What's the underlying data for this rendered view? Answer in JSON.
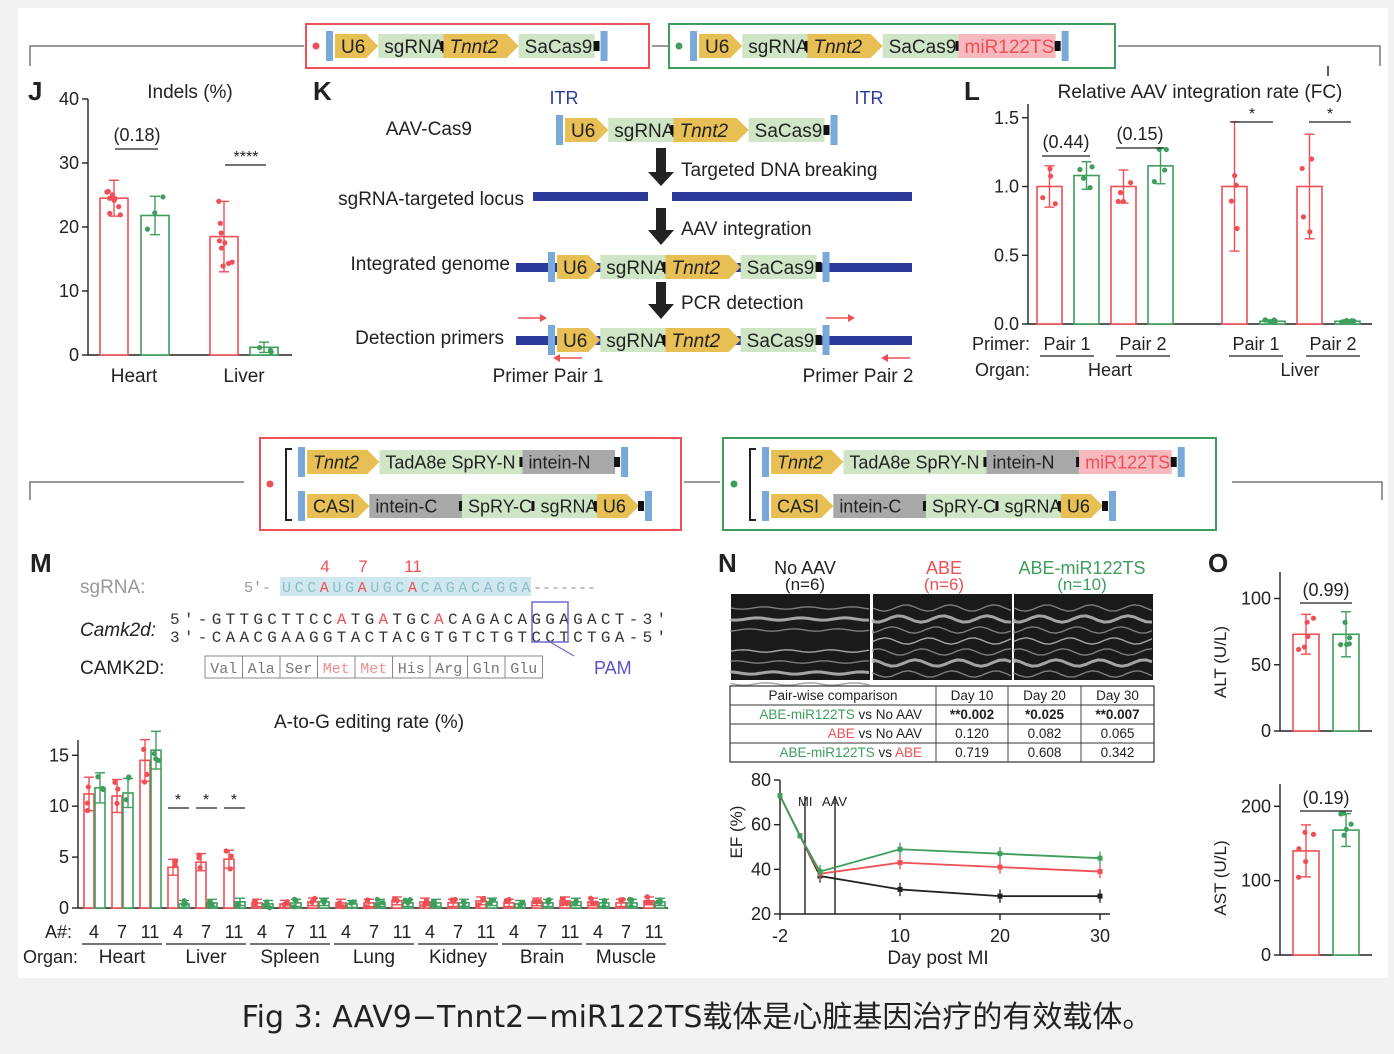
{
  "caption": "Fig 3: AAV9−Tnnt2−miR122TS载体是心脏基因治疗的有效载体。",
  "colors": {
    "red": "#ef4f55",
    "green": "#3f9e5d",
    "black": "#222222",
    "blue": "#2b3a9b",
    "gene_green": "#cfe6c6",
    "arrow_gold": "#e7bf55",
    "itr_blue": "#78a9d9",
    "mir_pink": "#f7b9bd",
    "intein_gray": "#a8a8a8"
  },
  "constructs": {
    "top_left": [
      "U6",
      "sgRNA",
      "Tnnt2",
      "SaCas9"
    ],
    "top_right": [
      "U6",
      "sgRNA",
      "Tnnt2",
      "SaCas9",
      "miR122TS"
    ],
    "bottom_left_row1": [
      "Tnnt2",
      "TadA8e SpRY-N",
      "intein-N"
    ],
    "bottom_left_row2": [
      "CASI",
      "intein-C",
      "SpRY-C",
      "sgRNA",
      "U6"
    ],
    "bottom_right_row1": [
      "Tnnt2",
      "TadA8e SpRY-N",
      "intein-N",
      "miR122TS"
    ],
    "bottom_right_row2": [
      "CASI",
      "intein-C",
      "SpRY-C",
      "sgRNA",
      "U6"
    ]
  },
  "panelJ": {
    "letter": "J",
    "title": "Indels (%)",
    "yticks": [
      "0",
      "10",
      "20",
      "30",
      "40"
    ],
    "categories": [
      "Heart",
      "Liver"
    ],
    "p_heart": "(0.18)",
    "p_liver": "****"
  },
  "panelK": {
    "letter": "K",
    "itr_left": "ITR",
    "itr_right": "ITR",
    "row1": "AAV-Cas9",
    "row2": "sgRNA-targeted locus",
    "row3": "Integrated genome",
    "row4": "Detection primers",
    "step1": "Targeted DNA breaking",
    "step2": "AAV integration",
    "step3": "PCR detection",
    "pair1": "Primer Pair 1",
    "pair2": "Primer Pair 2"
  },
  "panelL": {
    "letter": "L",
    "title": "Relative AAV integration rate (FC)",
    "yticks": [
      "0.0",
      "0.5",
      "1.0",
      "1.5"
    ],
    "primer_label": "Primer:",
    "organ_label": "Organ:",
    "pairs": [
      "Pair 1",
      "Pair 2",
      "Pair 1",
      "Pair 2"
    ],
    "organs": [
      "Heart",
      "Liver"
    ],
    "p1": "(0.44)",
    "p2": "(0.15)",
    "star": "*"
  },
  "panelM": {
    "letter": "M",
    "positions": [
      "4",
      "7",
      "11"
    ],
    "sgrna_label": "sgRNA:",
    "sgrna_prefix": "5'-",
    "sgrna_seq": "UCCAUGAUGCACAGACAGGA",
    "sgrna_dashes": "-------",
    "camk2d_label": "Camk2d:",
    "top_strand": "5'-GTTGCTTCCATGATGCACAGACAGGAGACT-3'",
    "bottom_strand": "3'-CAACGAAGGTACTACGTGTCTGTCCTCTGA-5'",
    "protein_label": "CAMK2D:",
    "aa": [
      "Val",
      "Ala",
      "Ser",
      "Met",
      "Met",
      "His",
      "Arg",
      "Gln",
      "Glu"
    ],
    "pam": "PAM",
    "chart_title": "A-to-G editing rate (%)",
    "yticks": [
      "0",
      "5",
      "10",
      "15"
    ],
    "a_label": "A#:",
    "organ_label": "Organ:",
    "organs": [
      "Heart",
      "Liver",
      "Spleen",
      "Lung",
      "Kidney",
      "Brain",
      "Muscle"
    ],
    "star": "*"
  },
  "panelN": {
    "letter": "N",
    "groups": [
      {
        "name": "No AAV",
        "n": "(n=6)"
      },
      {
        "name": "ABE",
        "n": "(n=6)"
      },
      {
        "name": "ABE-miR122TS",
        "n": "(n=10)"
      }
    ],
    "table_header": [
      "Pair-wise comparison",
      "Day 10",
      "Day 20",
      "Day 30"
    ],
    "table_rows": [
      {
        "a": "ABE-miR122TS",
        "vs": " vs ",
        "b": "No AAV",
        "d10": "**0.002",
        "d20": "*0.025",
        "d30": "**0.007"
      },
      {
        "a": "ABE",
        "vs": " vs ",
        "b": "No AAV",
        "d10": "0.120",
        "d20": "0.082",
        "d30": "0.065"
      },
      {
        "a": "ABE-miR122TS",
        "vs": " vs ",
        "b": "ABE",
        "d10": "0.719",
        "d20": "0.608",
        "d30": "0.342"
      }
    ],
    "ylabel": "EF (%)",
    "yticks": [
      "20",
      "40",
      "60",
      "80"
    ],
    "xticks": [
      "-2",
      "10",
      "20",
      "30"
    ],
    "xlabel": "Day post MI",
    "mi_label": "MI",
    "aav_label": "AAV"
  },
  "panelO": {
    "letter": "O",
    "alt_label": "ALT (U/L)",
    "alt_yticks": [
      "0",
      "50",
      "100"
    ],
    "alt_p": "(0.99)",
    "ast_label": "AST (U/L)",
    "ast_yticks": [
      "0",
      "100",
      "200"
    ],
    "ast_p": "(0.19)"
  },
  "chart_data": [
    {
      "panel": "J",
      "type": "bar",
      "title": "Indels (%)",
      "categories": [
        "Heart",
        "Liver"
      ],
      "ylim": [
        0,
        40
      ],
      "series": [
        {
          "color": "red",
          "values": [
            24.5,
            18.5
          ],
          "errors": [
            2.8,
            5.5
          ]
        },
        {
          "color": "green",
          "values": [
            21.8,
            1.2
          ],
          "errors": [
            3.0,
            0.8
          ]
        }
      ]
    },
    {
      "panel": "L",
      "type": "bar",
      "title": "Relative AAV integration rate (FC)",
      "categories": [
        "Heart Pair 1",
        "Heart Pair 2",
        "Liver Pair 1",
        "Liver Pair 2"
      ],
      "ylim": [
        0,
        1.5
      ],
      "series": [
        {
          "color": "red",
          "values": [
            1.0,
            1.0,
            1.0,
            1.0
          ],
          "errors": [
            0.15,
            0.12,
            0.47,
            0.38
          ]
        },
        {
          "color": "green",
          "values": [
            1.08,
            1.15,
            0.02,
            0.02
          ],
          "errors": [
            0.1,
            0.13,
            0.01,
            0.01
          ]
        }
      ]
    },
    {
      "panel": "M",
      "type": "bar",
      "title": "A-to-G editing rate (%)",
      "categories": [
        "Heart",
        "Liver",
        "Spleen",
        "Lung",
        "Kidney",
        "Brain",
        "Muscle"
      ],
      "positions": [
        "4",
        "7",
        "11"
      ],
      "ylim": [
        0,
        17
      ],
      "series": [
        {
          "color": "red",
          "values": [
            [
              11.2,
              11.0,
              14.5
            ],
            [
              4.0,
              4.5,
              4.8
            ],
            [
              0.5,
              0.4,
              0.6
            ],
            [
              0.5,
              0.5,
              0.7
            ],
            [
              0.6,
              0.5,
              0.7
            ],
            [
              0.5,
              0.6,
              0.7
            ],
            [
              0.6,
              0.5,
              0.7
            ]
          ]
        },
        {
          "color": "green",
          "values": [
            [
              11.8,
              11.3,
              15.5
            ],
            [
              0.4,
              0.5,
              0.6
            ],
            [
              0.4,
              0.5,
              0.6
            ],
            [
              0.4,
              0.5,
              0.5
            ],
            [
              0.5,
              0.5,
              0.6
            ],
            [
              0.4,
              0.5,
              0.6
            ],
            [
              0.5,
              0.5,
              0.6
            ]
          ]
        }
      ]
    },
    {
      "panel": "N",
      "type": "line",
      "xlabel": "Day post MI",
      "ylabel": "EF (%)",
      "x": [
        -2,
        0,
        2,
        10,
        20,
        30
      ],
      "xlim": [
        -2,
        31
      ],
      "ylim": [
        20,
        80
      ],
      "series": [
        {
          "color": "black",
          "values": [
            73,
            55,
            37,
            31,
            28,
            28
          ]
        },
        {
          "color": "red",
          "values": [
            73,
            55,
            38,
            43,
            41,
            39
          ]
        },
        {
          "color": "green",
          "values": [
            73,
            55,
            39,
            49,
            47,
            45
          ]
        }
      ]
    },
    {
      "panel": "O-ALT",
      "type": "bar",
      "ylabel": "ALT (U/L)",
      "ylim": [
        0,
        120
      ],
      "series": [
        {
          "color": "red",
          "values": [
            73
          ],
          "errors": [
            15
          ]
        },
        {
          "color": "green",
          "values": [
            73
          ],
          "errors": [
            17
          ]
        }
      ]
    },
    {
      "panel": "O-AST",
      "type": "bar",
      "ylabel": "AST (U/L)",
      "ylim": [
        0,
        230
      ],
      "series": [
        {
          "color": "red",
          "values": [
            140
          ],
          "errors": [
            35
          ]
        },
        {
          "color": "green",
          "values": [
            168
          ],
          "errors": [
            22
          ]
        }
      ]
    }
  ]
}
